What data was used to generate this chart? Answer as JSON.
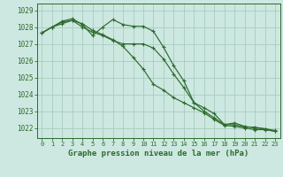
{
  "title": "Graphe pression niveau de la mer (hPa)",
  "background_color": "#cce8e0",
  "grid_color": "#aaccbf",
  "line_color": "#2d6a2d",
  "spine_color": "#2d6a2d",
  "x_ticks": [
    0,
    1,
    2,
    3,
    4,
    5,
    6,
    7,
    8,
    9,
    10,
    11,
    12,
    13,
    14,
    15,
    16,
    17,
    18,
    19,
    20,
    21,
    22,
    23
  ],
  "ylim": [
    1021.4,
    1029.4
  ],
  "yticks": [
    1022,
    1023,
    1024,
    1025,
    1026,
    1027,
    1028,
    1029
  ],
  "series": [
    [
      1027.65,
      1028.0,
      1028.35,
      1028.5,
      1028.15,
      1027.5,
      1028.0,
      1028.45,
      1028.15,
      1028.05,
      1028.05,
      1027.75,
      1026.8,
      1025.7,
      1024.8,
      1023.5,
      1023.2,
      1022.85,
      1022.2,
      1022.2,
      1022.05,
      1022.05,
      1021.95,
      1021.85
    ],
    [
      1027.65,
      1028.0,
      1028.3,
      1028.4,
      1028.2,
      1027.8,
      1027.55,
      1027.25,
      1026.85,
      1026.2,
      1025.5,
      1024.6,
      1024.25,
      1023.8,
      1023.5,
      1023.2,
      1022.9,
      1022.5,
      1022.15,
      1022.1,
      1022.0,
      1021.9,
      1021.9,
      1021.8
    ],
    [
      1027.65,
      1028.0,
      1028.2,
      1028.4,
      1028.0,
      1027.7,
      1027.5,
      1027.2,
      1027.0,
      1027.0,
      1027.0,
      1026.75,
      1026.1,
      1025.2,
      1024.4,
      1023.5,
      1023.0,
      1022.6,
      1022.2,
      1022.3,
      1022.1,
      1022.0,
      1021.95,
      1021.8
    ]
  ]
}
